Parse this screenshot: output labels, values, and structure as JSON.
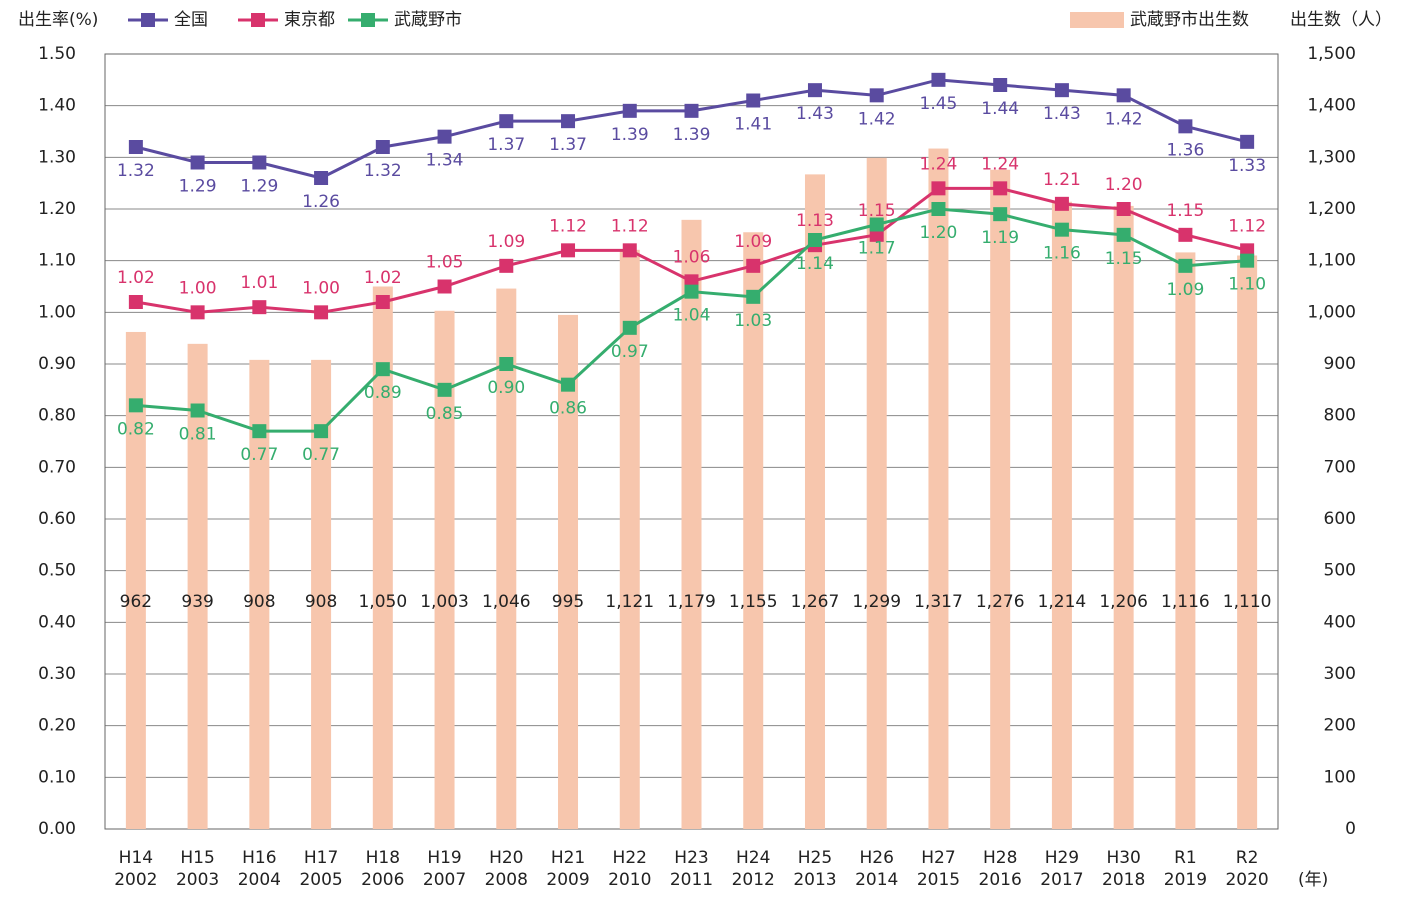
{
  "chart_data": {
    "type": "bar-line",
    "y_label": "出生率(%)",
    "y2_label": "出生数（人）",
    "x_label": "(年)",
    "categories": [
      [
        "H14",
        "2002"
      ],
      [
        "H15",
        "2003"
      ],
      [
        "H16",
        "2004"
      ],
      [
        "H17",
        "2005"
      ],
      [
        "H18",
        "2006"
      ],
      [
        "H19",
        "2007"
      ],
      [
        "H20",
        "2008"
      ],
      [
        "H21",
        "2009"
      ],
      [
        "H22",
        "2010"
      ],
      [
        "H23",
        "2011"
      ],
      [
        "H24",
        "2012"
      ],
      [
        "H25",
        "2013"
      ],
      [
        "H26",
        "2014"
      ],
      [
        "H27",
        "2015"
      ],
      [
        "H28",
        "2016"
      ],
      [
        "H29",
        "2017"
      ],
      [
        "H30",
        "2018"
      ],
      [
        "R1",
        "2019"
      ],
      [
        "R2",
        "2020"
      ]
    ],
    "bars": {
      "name": "武蔵野市出生数",
      "color": "#f7c6ad",
      "axis": "y2",
      "values": [
        962,
        939,
        908,
        908,
        1050,
        1003,
        1046,
        995,
        1121,
        1179,
        1155,
        1267,
        1299,
        1317,
        1276,
        1214,
        1206,
        1116,
        1110
      ],
      "value_labels": [
        "962",
        "939",
        "908",
        "908",
        "1,050",
        "1,003",
        "1,046",
        "995",
        "1,121",
        "1,179",
        "1,155",
        "1,267",
        "1,299",
        "1,317",
        "1,276",
        "1,214",
        "1,206",
        "1,116",
        "1,110"
      ]
    },
    "series": [
      {
        "name": "全国",
        "color": "#5a4ba0",
        "values": [
          1.32,
          1.29,
          1.29,
          1.26,
          1.32,
          1.34,
          1.37,
          1.37,
          1.39,
          1.39,
          1.41,
          1.43,
          1.42,
          1.45,
          1.44,
          1.43,
          1.42,
          1.36,
          1.33
        ],
        "value_labels": [
          "1.32",
          "1.29",
          "1.29",
          "1.26",
          "1.32",
          "1.34",
          "1.37",
          "1.37",
          "1.39",
          "1.39",
          "1.41",
          "1.43",
          "1.42",
          "1.45",
          "1.44",
          "1.43",
          "1.42",
          "1.36",
          "1.33"
        ]
      },
      {
        "name": "東京都",
        "color": "#d8336c",
        "values": [
          1.02,
          1.0,
          1.01,
          1.0,
          1.02,
          1.05,
          1.09,
          1.12,
          1.12,
          1.06,
          1.09,
          1.13,
          1.15,
          1.24,
          1.24,
          1.21,
          1.2,
          1.15,
          1.12
        ],
        "value_labels": [
          "1.02",
          "1.00",
          "1.01",
          "1.00",
          "1.02",
          "1.05",
          "1.09",
          "1.12",
          "1.12",
          "1.06",
          "1.09",
          "1.13",
          "1.15",
          "1.24",
          "1.24",
          "1.21",
          "1.20",
          "1.15",
          "1.12"
        ]
      },
      {
        "name": "武蔵野市",
        "color": "#35ad6e",
        "values": [
          0.82,
          0.81,
          0.77,
          0.77,
          0.89,
          0.85,
          0.9,
          0.86,
          0.97,
          1.04,
          1.03,
          1.14,
          1.17,
          1.2,
          1.19,
          1.16,
          1.15,
          1.09,
          1.1
        ],
        "value_labels": [
          "0.82",
          "0.81",
          "0.77",
          "0.77",
          "0.89",
          "0.85",
          "0.90",
          "0.86",
          "0.97",
          "1.04",
          "1.03",
          "1.14",
          "1.17",
          "1.20",
          "1.19",
          "1.16",
          "1.15",
          "1.09",
          "1.10"
        ]
      }
    ],
    "ylim": [
      0,
      1.5
    ],
    "yticks": [
      {
        "value": 0,
        "label": "0.00"
      },
      {
        "value": 0.1,
        "label": "0.10"
      },
      {
        "value": 0.2,
        "label": "0.20"
      },
      {
        "value": 0.3,
        "label": "0.30"
      },
      {
        "value": 0.4,
        "label": "0.40"
      },
      {
        "value": 0.5,
        "label": "0.50"
      },
      {
        "value": 0.6,
        "label": "0.60"
      },
      {
        "value": 0.7,
        "label": "0.70"
      },
      {
        "value": 0.8,
        "label": "0.80"
      },
      {
        "value": 0.9,
        "label": "0.90"
      },
      {
        "value": 1,
        "label": "1.00"
      },
      {
        "value": 1.1,
        "label": "1.10"
      },
      {
        "value": 1.2,
        "label": "1.20"
      },
      {
        "value": 1.3,
        "label": "1.30"
      },
      {
        "value": 1.4,
        "label": "1.40"
      },
      {
        "value": 1.5,
        "label": "1.50"
      }
    ],
    "y2lim": [
      0,
      1500
    ],
    "y2ticks": [
      0,
      100,
      200,
      300,
      400,
      500,
      600,
      700,
      800,
      900,
      {
        "value": 1000,
        "label": "1,000"
      },
      {
        "value": 1100,
        "label": "1,100"
      },
      {
        "value": 1200,
        "label": "1,200"
      },
      {
        "value": 1300,
        "label": "1,300"
      },
      {
        "value": 1400,
        "label": "1,400"
      },
      {
        "value": 1500,
        "label": "1,500"
      }
    ],
    "grid": true
  }
}
